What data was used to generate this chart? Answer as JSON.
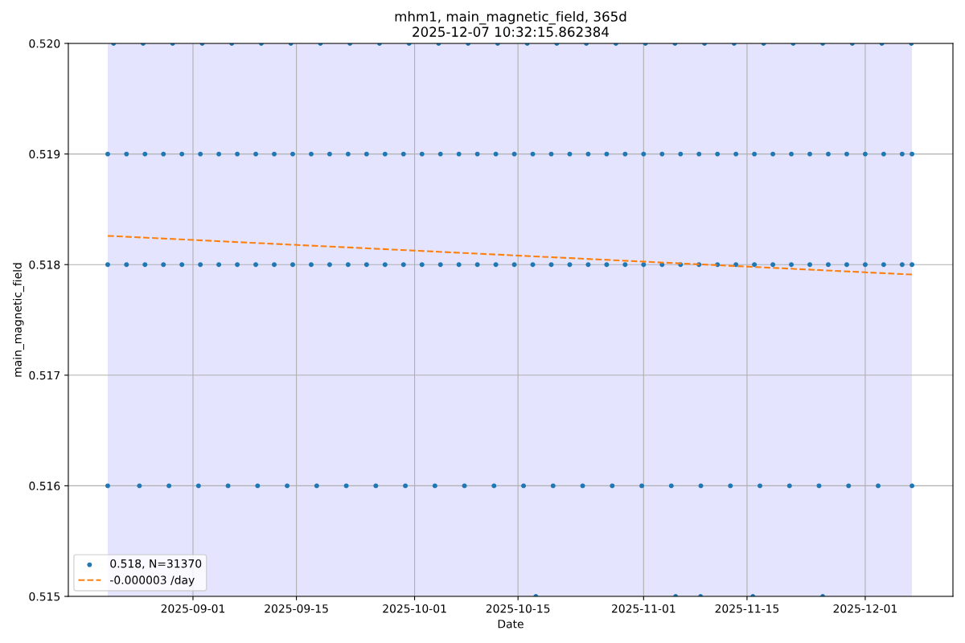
{
  "chart_data": {
    "type": "scatter",
    "title": "mhm1, main_magnetic_field, 365d\n2025-12-07 10:32:15.862384",
    "xlabel": "Date",
    "ylabel": "main_magnetic_field",
    "xlim": [
      "2025-08-15T03:00",
      "2025-12-12T21:00"
    ],
    "xticks": [
      "2025-09-01",
      "2025-09-15",
      "2025-10-01",
      "2025-10-15",
      "2025-11-01",
      "2025-11-15",
      "2025-12-01"
    ],
    "ylim": [
      0.515,
      0.52
    ],
    "yticks": [
      0.515,
      0.516,
      0.517,
      0.518,
      0.519,
      {
        "value": 0.52,
        "label": "0.520"
      }
    ],
    "grid": true,
    "legend": "bottom left",
    "bands": [
      {
        "axis": "x",
        "from": "2025-08-20T11:00",
        "to": "2025-12-07T08:00",
        "color": "#e4e4ff"
      }
    ],
    "series": [
      {
        "name": "0.518, N=31370",
        "marker": "circle",
        "color": "#1f77b4",
        "x": [
          "2025-08-20T11:00",
          "2025-08-23T00:00",
          "2025-08-25T12:00",
          "2025-08-28T00:00",
          "2025-08-30T12:00",
          "2025-09-02T00:00",
          "2025-09-04T12:00",
          "2025-09-07T00:00",
          "2025-09-09T12:00",
          "2025-09-12T00:00",
          "2025-09-14T12:00",
          "2025-09-17T00:00",
          "2025-09-19T12:00",
          "2025-09-22T00:00",
          "2025-09-24T12:00",
          "2025-09-27T00:00",
          "2025-09-29T12:00",
          "2025-10-02T00:00",
          "2025-10-04T12:00",
          "2025-10-07T00:00",
          "2025-10-09T12:00",
          "2025-10-12T00:00",
          "2025-10-14T12:00",
          "2025-10-17T00:00",
          "2025-10-19T12:00",
          "2025-10-22T00:00",
          "2025-10-24T12:00",
          "2025-10-27T00:00",
          "2025-10-29T12:00",
          "2025-11-01T00:00",
          "2025-11-03T12:00",
          "2025-11-06T00:00",
          "2025-11-08T12:00",
          "2025-11-11T00:00",
          "2025-11-13T12:00",
          "2025-11-16T00:00",
          "2025-11-18T12:00",
          "2025-11-21T00:00",
          "2025-11-23T12:00",
          "2025-11-26T00:00",
          "2025-11-28T12:00",
          "2025-12-01T00:00",
          "2025-12-03T12:00",
          "2025-12-06T00:00",
          "2025-12-07T08:00",
          "2025-08-20T11:00",
          "2025-08-23T00:00",
          "2025-08-25T12:00",
          "2025-08-28T00:00",
          "2025-08-30T12:00",
          "2025-09-02T00:00",
          "2025-09-04T12:00",
          "2025-09-07T00:00",
          "2025-09-09T12:00",
          "2025-09-12T00:00",
          "2025-09-14T12:00",
          "2025-09-17T00:00",
          "2025-09-19T12:00",
          "2025-09-22T00:00",
          "2025-09-24T12:00",
          "2025-09-27T00:00",
          "2025-09-29T12:00",
          "2025-10-02T00:00",
          "2025-10-04T12:00",
          "2025-10-07T00:00",
          "2025-10-09T12:00",
          "2025-10-12T00:00",
          "2025-10-14T12:00",
          "2025-10-17T00:00",
          "2025-10-19T12:00",
          "2025-10-22T00:00",
          "2025-10-24T12:00",
          "2025-10-27T00:00",
          "2025-10-29T12:00",
          "2025-11-01T00:00",
          "2025-11-03T12:00",
          "2025-11-06T00:00",
          "2025-11-08T12:00",
          "2025-11-11T00:00",
          "2025-11-13T12:00",
          "2025-11-16T00:00",
          "2025-11-18T12:00",
          "2025-11-21T00:00",
          "2025-11-23T12:00",
          "2025-11-26T00:00",
          "2025-11-28T12:00",
          "2025-12-01T00:00",
          "2025-12-03T12:00",
          "2025-12-06T00:00",
          "2025-12-07T08:00",
          "2025-08-21T06:00",
          "2025-08-25T06:00",
          "2025-08-29T06:00",
          "2025-09-02T06:00",
          "2025-09-06T06:00",
          "2025-09-10T06:00",
          "2025-09-14T06:00",
          "2025-09-18T06:00",
          "2025-09-22T06:00",
          "2025-09-26T06:00",
          "2025-09-30T06:00",
          "2025-10-04T06:00",
          "2025-10-08T06:00",
          "2025-10-12T06:00",
          "2025-10-16T06:00",
          "2025-10-20T06:00",
          "2025-10-24T06:00",
          "2025-10-28T06:00",
          "2025-11-01T06:00",
          "2025-11-05T06:00",
          "2025-11-09T06:00",
          "2025-11-13T06:00",
          "2025-11-17T06:00",
          "2025-11-21T06:00",
          "2025-11-25T06:00",
          "2025-11-29T06:00",
          "2025-12-03T06:00",
          "2025-12-07T06:00",
          "2025-08-20T11:00",
          "2025-08-24T18:00",
          "2025-08-28T18:00",
          "2025-09-01T18:00",
          "2025-09-05T18:00",
          "2025-09-09T18:00",
          "2025-09-13T18:00",
          "2025-09-17T18:00",
          "2025-09-21T18:00",
          "2025-09-25T18:00",
          "2025-09-29T18:00",
          "2025-10-03T18:00",
          "2025-10-07T18:00",
          "2025-10-11T18:00",
          "2025-10-15T18:00",
          "2025-10-19T18:00",
          "2025-10-23T18:00",
          "2025-10-27T18:00",
          "2025-10-31T18:00",
          "2025-11-04T18:00",
          "2025-11-08T18:00",
          "2025-11-12T18:00",
          "2025-11-16T18:00",
          "2025-11-20T18:00",
          "2025-11-24T18:00",
          "2025-11-28T18:00",
          "2025-12-02T18:00",
          "2025-12-07T08:00",
          "2025-10-17T10:00",
          "2025-11-05T08:00",
          "2025-11-08T17:00",
          "2025-11-15T19:00",
          "2025-11-25T06:00"
        ],
        "values": [
          0.519,
          0.519,
          0.519,
          0.519,
          0.519,
          0.519,
          0.519,
          0.519,
          0.519,
          0.519,
          0.519,
          0.519,
          0.519,
          0.519,
          0.519,
          0.519,
          0.519,
          0.519,
          0.519,
          0.519,
          0.519,
          0.519,
          0.519,
          0.519,
          0.519,
          0.519,
          0.519,
          0.519,
          0.519,
          0.519,
          0.519,
          0.519,
          0.519,
          0.519,
          0.519,
          0.519,
          0.519,
          0.519,
          0.519,
          0.519,
          0.519,
          0.519,
          0.519,
          0.519,
          0.519,
          0.518,
          0.518,
          0.518,
          0.518,
          0.518,
          0.518,
          0.518,
          0.518,
          0.518,
          0.518,
          0.518,
          0.518,
          0.518,
          0.518,
          0.518,
          0.518,
          0.518,
          0.518,
          0.518,
          0.518,
          0.518,
          0.518,
          0.518,
          0.518,
          0.518,
          0.518,
          0.518,
          0.518,
          0.518,
          0.518,
          0.518,
          0.518,
          0.518,
          0.518,
          0.518,
          0.518,
          0.518,
          0.518,
          0.518,
          0.518,
          0.518,
          0.518,
          0.518,
          0.518,
          0.518,
          0.52,
          0.52,
          0.52,
          0.52,
          0.52,
          0.52,
          0.52,
          0.52,
          0.52,
          0.52,
          0.52,
          0.52,
          0.52,
          0.52,
          0.52,
          0.52,
          0.52,
          0.52,
          0.52,
          0.52,
          0.52,
          0.52,
          0.52,
          0.52,
          0.52,
          0.52,
          0.52,
          0.52,
          0.516,
          0.516,
          0.516,
          0.516,
          0.516,
          0.516,
          0.516,
          0.516,
          0.516,
          0.516,
          0.516,
          0.516,
          0.516,
          0.516,
          0.516,
          0.516,
          0.516,
          0.516,
          0.516,
          0.516,
          0.516,
          0.516,
          0.516,
          0.516,
          0.516,
          0.516,
          0.516,
          0.516,
          0.515,
          0.515,
          0.515,
          0.515,
          0.515
        ]
      },
      {
        "name": "-0.000003 /day",
        "type": "line",
        "marker": "none",
        "line_style": "dashed",
        "color": "#ff7f0e",
        "x": [
          "2025-08-20T11:00",
          "2025-12-07T08:00"
        ],
        "values": [
          0.51826,
          0.51791
        ]
      }
    ]
  }
}
